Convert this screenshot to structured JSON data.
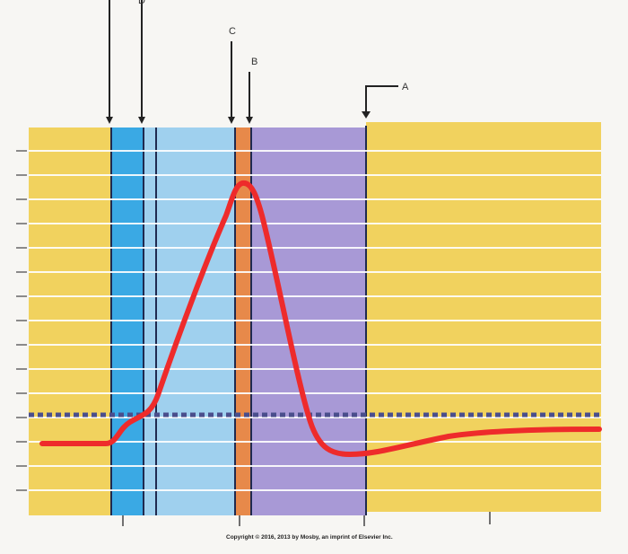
{
  "labels": {
    "A": "A",
    "B": "B",
    "C": "C",
    "D": "D"
  },
  "copyright": "Copyright © 2016, 2013 by Mosby, an imprint of Elsevier Inc.",
  "colors": {
    "resting_phase": "#f1d25e",
    "phase_blue": "#3aa9e4",
    "phase_light_blue": "#9fd0ee",
    "phase_orange": "#e7894a",
    "phase_purple": "#a899d6",
    "action_potential_curve": "#ee2b2b",
    "threshold_line": "#4a4e8c",
    "arrows": "#222222"
  }
}
